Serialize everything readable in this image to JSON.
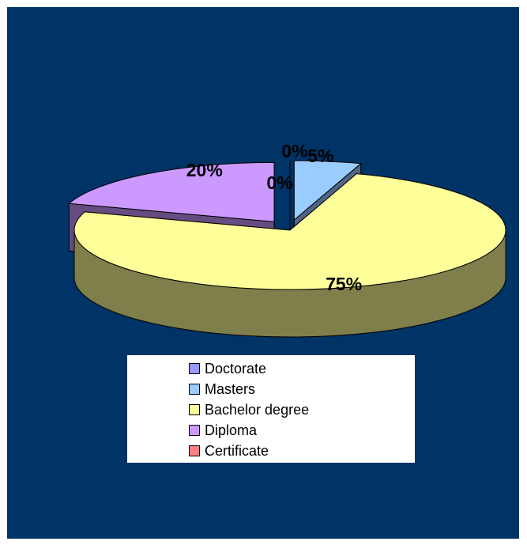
{
  "chart_data": {
    "type": "pie",
    "style": "3d-exploded",
    "background_color": "#003366",
    "categories": [
      "Doctorate",
      "Masters",
      "Bachelor degree",
      "Diploma",
      "Certificate"
    ],
    "values": [
      0,
      5,
      75,
      20,
      0
    ],
    "data_labels": [
      "0%",
      "5%",
      "75%",
      "20%",
      "0%"
    ],
    "colors": [
      "#9999FF",
      "#99CCFF",
      "#FFFF99",
      "#CC99FF",
      "#FF8080"
    ],
    "side_colors": [
      "#4A4A80",
      "#4F6687",
      "#7F7F4C",
      "#664C80",
      "#804040"
    ],
    "legend": {
      "position": "bottom",
      "items": [
        "Doctorate",
        "Masters",
        "Bachelor degree",
        "Diploma",
        "Certificate"
      ]
    }
  }
}
